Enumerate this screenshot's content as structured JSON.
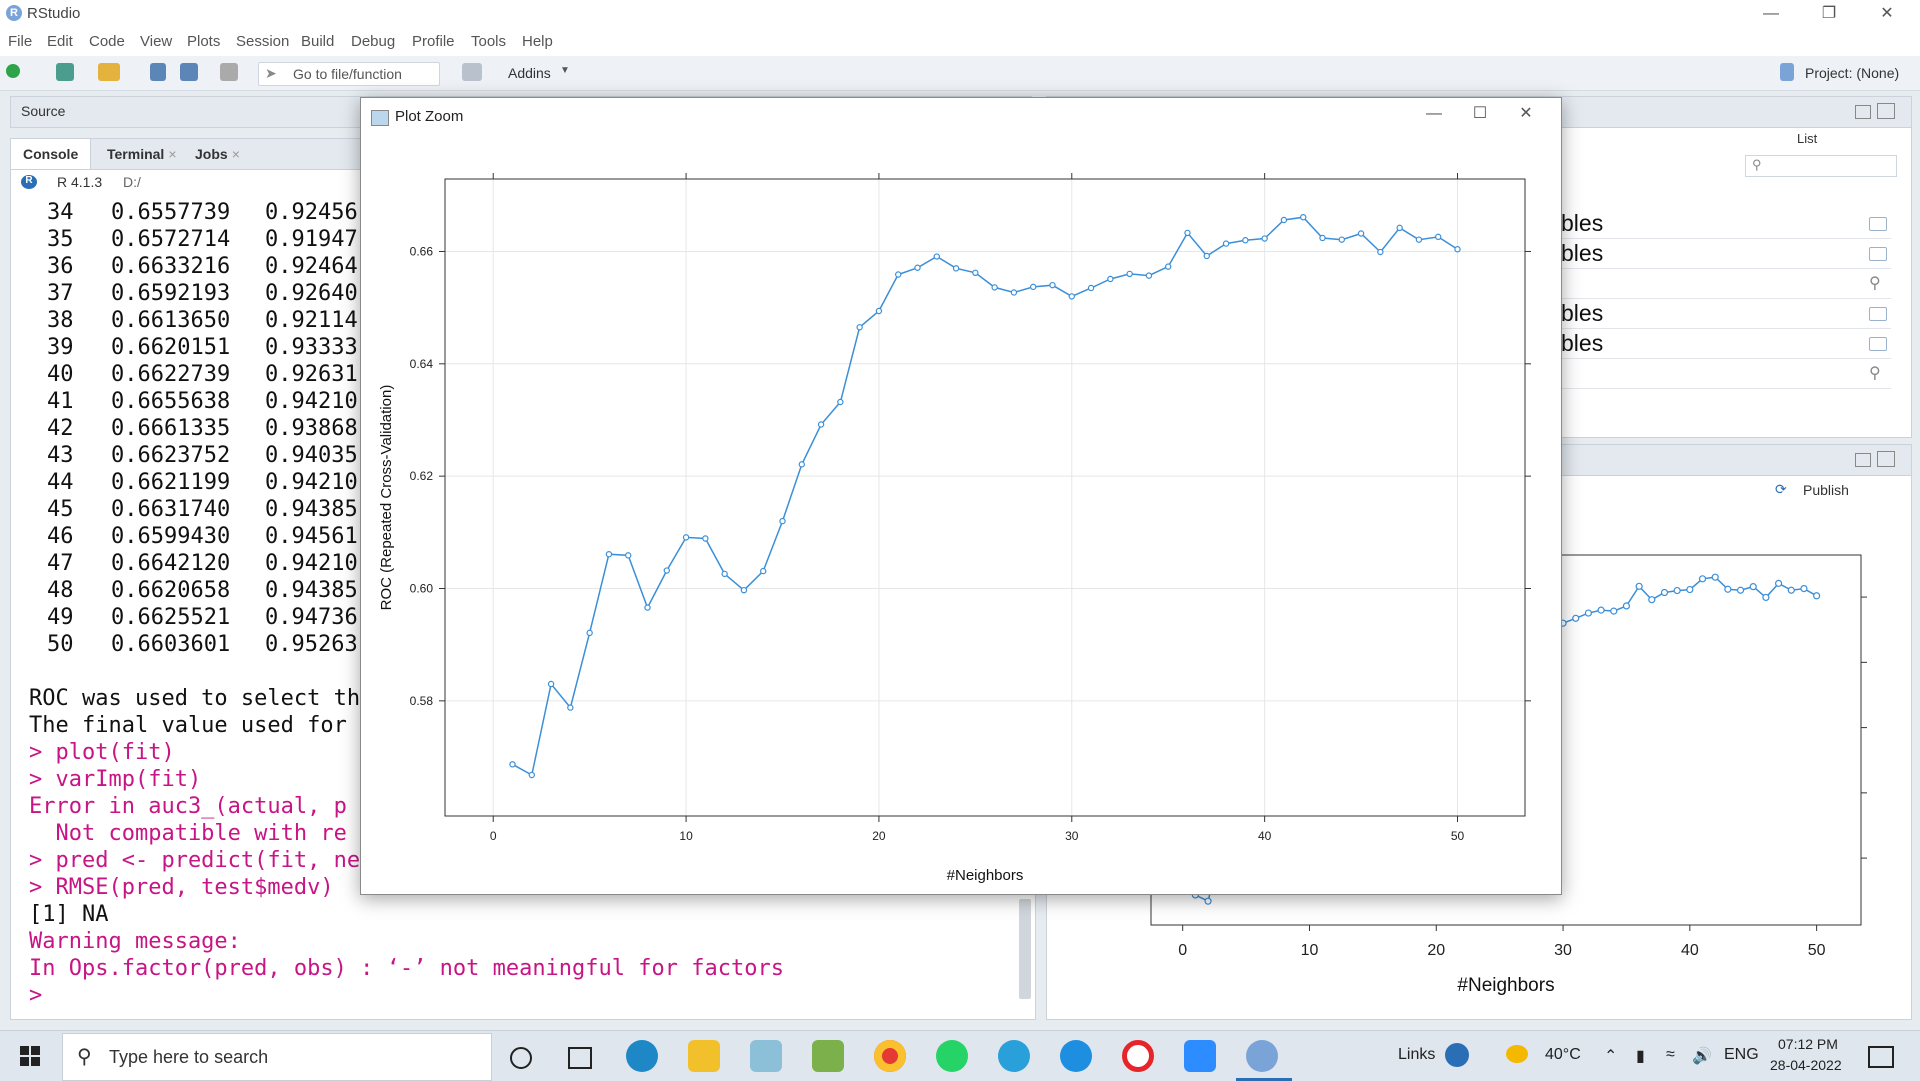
{
  "window": {
    "title": "RStudio",
    "logo": "R"
  },
  "menu": [
    "File",
    "Edit",
    "Code",
    "View",
    "Plots",
    "Session",
    "Build",
    "Debug",
    "Profile",
    "Tools",
    "Help"
  ],
  "toolbar": {
    "goto_placeholder": "Go to file/function",
    "addins": "Addins",
    "project": "Project: (None)"
  },
  "source_tab": "Source",
  "console": {
    "tabs": [
      "Console",
      "Terminal",
      "Jobs"
    ],
    "r_version": "R 4.1.3",
    "path": "D:/",
    "rows": [
      [
        "34",
        "0.6557739",
        "0.92456"
      ],
      [
        "35",
        "0.6572714",
        "0.91947"
      ],
      [
        "36",
        "0.6633216",
        "0.92464"
      ],
      [
        "37",
        "0.6592193",
        "0.92640"
      ],
      [
        "38",
        "0.6613650",
        "0.92114"
      ],
      [
        "39",
        "0.6620151",
        "0.93333"
      ],
      [
        "40",
        "0.6622739",
        "0.92631"
      ],
      [
        "41",
        "0.6655638",
        "0.94210"
      ],
      [
        "42",
        "0.6661335",
        "0.93868"
      ],
      [
        "43",
        "0.6623752",
        "0.94035"
      ],
      [
        "44",
        "0.6621199",
        "0.94210"
      ],
      [
        "45",
        "0.6631740",
        "0.94385"
      ],
      [
        "46",
        "0.6599430",
        "0.94561"
      ],
      [
        "47",
        "0.6642120",
        "0.94210"
      ],
      [
        "48",
        "0.6620658",
        "0.94385"
      ],
      [
        "49",
        "0.6625521",
        "0.94736"
      ],
      [
        "50",
        "0.6603601",
        "0.95263"
      ]
    ],
    "lines": [
      {
        "text": "ROC was used to select th",
        "kind": "out"
      },
      {
        "text": "The final value used for",
        "kind": "out"
      },
      {
        "text": "> plot(fit)",
        "kind": "cmd"
      },
      {
        "text": "> varImp(fit)",
        "kind": "cmd"
      },
      {
        "text": "Error in auc3_(actual, p",
        "kind": "err"
      },
      {
        "text": "  Not compatible with re",
        "kind": "err"
      },
      {
        "text": "> pred <- predict(fit, ne",
        "kind": "cmd"
      },
      {
        "text": "> RMSE(pred, test$medv)",
        "kind": "cmd"
      },
      {
        "text": "[1] NA",
        "kind": "out"
      },
      {
        "text": "Warning message:",
        "kind": "err"
      },
      {
        "text": "In Ops.factor(pred, obs) : ‘-’ not meaningful for factors",
        "kind": "err"
      },
      {
        "text": "> ",
        "kind": "cmd"
      }
    ]
  },
  "env": {
    "list_label": "List",
    "rows": [
      {
        "text": "bles",
        "icon": "grid-icon"
      },
      {
        "text": "bles",
        "icon": "grid-icon"
      },
      {
        "text": "",
        "icon": "magnifier-icon"
      },
      {
        "text": "bles",
        "icon": "grid-icon"
      },
      {
        "text": "bles",
        "icon": "grid-icon"
      },
      {
        "text": "",
        "icon": "magnifier-icon"
      }
    ]
  },
  "plots_pane": {
    "publish": "Publish",
    "xlabel": "#Neighbors",
    "xticks": [
      "0",
      "10",
      "20",
      "30",
      "40",
      "50"
    ]
  },
  "zoom": {
    "title": "Plot Zoom"
  },
  "chart_data": {
    "type": "line",
    "title": "",
    "xlabel": "#Neighbors",
    "ylabel": "ROC (Repeated Cross-Validation)",
    "xlim": [
      -2.5,
      53.5
    ],
    "ylim": [
      0.5595,
      0.6729
    ],
    "xticks": [
      0,
      10,
      20,
      30,
      40,
      50
    ],
    "yticks": [
      0.58,
      0.6,
      0.62,
      0.64,
      0.66
    ],
    "grid": true,
    "series": [
      {
        "color": "#3b8fd8",
        "x": [
          1,
          2,
          3,
          4,
          5,
          6,
          7,
          8,
          9,
          10,
          11,
          12,
          13,
          14,
          15,
          16,
          17,
          18,
          19,
          20,
          21,
          22,
          23,
          24,
          25,
          26,
          27,
          28,
          29,
          30,
          31,
          32,
          33,
          34,
          35,
          36,
          37,
          38,
          39,
          40,
          41,
          42,
          43,
          44,
          45,
          46,
          47,
          48,
          49,
          50
        ],
        "y": [
          0.5687,
          0.5668,
          0.583,
          0.5788,
          0.5921,
          0.6061,
          0.6059,
          0.5966,
          0.6032,
          0.6091,
          0.6089,
          0.6026,
          0.5997,
          0.6031,
          0.612,
          0.6221,
          0.6292,
          0.6332,
          0.6465,
          0.6494,
          0.6559,
          0.6571,
          0.6591,
          0.657,
          0.6562,
          0.6536,
          0.6527,
          0.6537,
          0.654,
          0.652,
          0.6535,
          0.6551,
          0.656,
          0.6557,
          0.6573,
          0.6633,
          0.6592,
          0.6614,
          0.662,
          0.6623,
          0.6656,
          0.6661,
          0.6624,
          0.6621,
          0.6632,
          0.6599,
          0.6642,
          0.6621,
          0.6626,
          0.6604
        ]
      }
    ]
  },
  "taskbar": {
    "search_placeholder": "Type here to search",
    "links": "Links",
    "temp": "40°C",
    "lang": "ENG",
    "time": "07:12 PM",
    "date": "28-04-2022"
  }
}
